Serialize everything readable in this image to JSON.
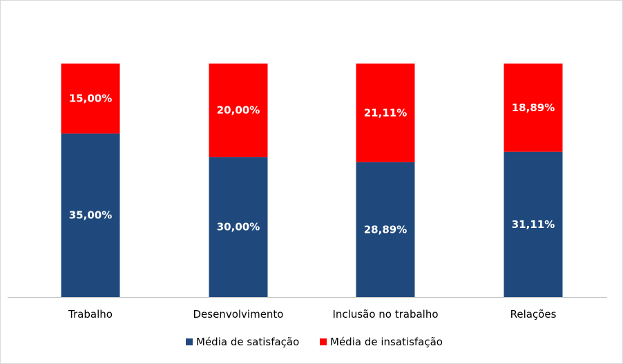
{
  "chart_data": {
    "type": "bar",
    "stacked": true,
    "title": "",
    "xlabel": "",
    "ylabel": "",
    "ylim": [
      0,
      50
    ],
    "grid": false,
    "legend_position": "bottom",
    "categories": [
      "Trabalho",
      "Desenvolvimento",
      "Inclusão no trabalho",
      "Relações"
    ],
    "series": [
      {
        "name": "Média de satisfação",
        "color": "#1F497D",
        "values": [
          35.0,
          30.0,
          28.89,
          31.11
        ],
        "labels": [
          "35,00%",
          "30,00%",
          "28,89%",
          "31,11%"
        ]
      },
      {
        "name": "Média de insatisfação",
        "color": "#FF0000",
        "values": [
          15.0,
          20.0,
          21.11,
          18.89
        ],
        "labels": [
          "15,00%",
          "20,00%",
          "21,11%",
          "18,89%"
        ]
      }
    ]
  }
}
